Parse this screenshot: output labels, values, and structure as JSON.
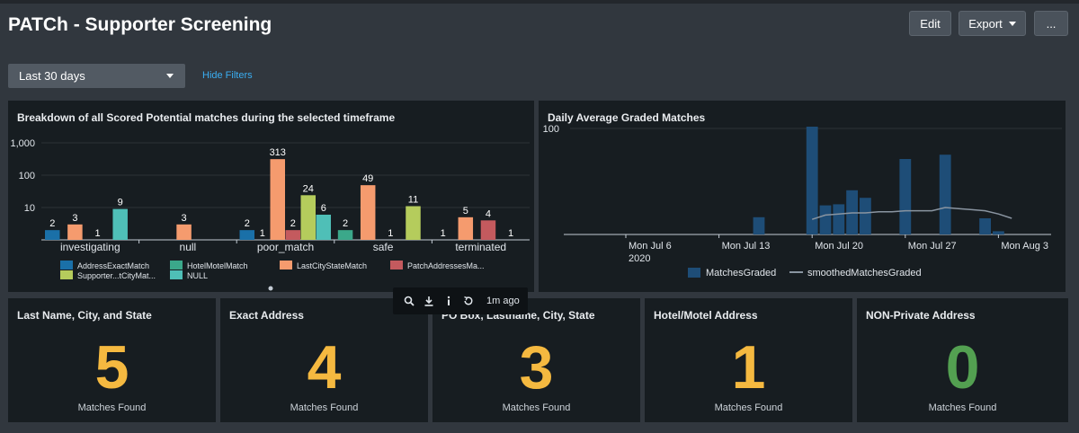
{
  "header": {
    "title": "PATCh - Supporter Screening"
  },
  "toolbar": {
    "edit_label": "Edit",
    "export_label": "Export",
    "more_label": "..."
  },
  "filters": {
    "timerange_value": "Last 30 days",
    "hide_filters_label": "Hide Filters"
  },
  "panels": {
    "breakdown_title": "Breakdown of all Scored Potential matches during the selected timeframe",
    "daily_title": "Daily Average Graded Matches"
  },
  "panel_toolbar": {
    "refresh_ago": "1m ago"
  },
  "chart_data": [
    {
      "type": "bar",
      "title": "Breakdown of all Scored Potential matches during the selected timeframe",
      "yscale": "log",
      "ylim": [
        1,
        1000
      ],
      "yticks": [
        "1,000",
        "100",
        "10"
      ],
      "categories": [
        "investigating",
        "null",
        "poor_match",
        "safe",
        "terminated"
      ],
      "series": [
        {
          "name": "AddressExactMatch",
          "color": "#1a70a8",
          "values": [
            2,
            null,
            2,
            null,
            1
          ]
        },
        {
          "name": "HotelMotelMatch",
          "color": "#3ba88a",
          "values": [
            null,
            null,
            1,
            2,
            null
          ]
        },
        {
          "name": "LastCityStateMatch",
          "color": "#f59b6e",
          "values": [
            3,
            3,
            313,
            49,
            5
          ]
        },
        {
          "name": "PatchAddressesMa...",
          "color": "#c45a5e",
          "values": [
            null,
            null,
            2,
            1,
            4
          ]
        },
        {
          "name": "Supporter...tCityMat...",
          "color": "#b5cc5c",
          "values": [
            1,
            null,
            24,
            11,
            1
          ]
        },
        {
          "name": "NULL",
          "color": "#4fbfb7",
          "values": [
            9,
            null,
            6,
            null,
            null
          ]
        }
      ],
      "legend_position": "bottom"
    },
    {
      "type": "bar",
      "title": "Daily Average Graded Matches",
      "ytick": "100",
      "xtick_labels": [
        "Mon Jul 6",
        "Mon Jul 13",
        "Mon Jul 20",
        "Mon Jul 27",
        "Mon Aug 3"
      ],
      "xtick_year": "2020",
      "series": [
        {
          "name": "MatchesGraded",
          "color": "#1e4d77"
        },
        {
          "name": "smoothedMatchesGraded",
          "color": "#8a95a1"
        }
      ],
      "x": [
        "Jul 16",
        "Jul 17",
        "Jul 18",
        "Jul 19",
        "Jul 20",
        "Jul 21",
        "Jul 22",
        "Jul 23",
        "Jul 24",
        "Jul 25",
        "Jul 26",
        "Jul 27",
        "Jul 28",
        "Jul 29",
        "Jul 30",
        "Jul 31",
        "Aug 1",
        "Aug 2",
        "Aug 3",
        "Aug 4"
      ],
      "values": [
        16,
        null,
        null,
        null,
        100,
        27,
        28,
        41,
        34,
        null,
        null,
        70,
        null,
        null,
        74,
        null,
        null,
        15,
        3,
        null
      ],
      "smoothed": [
        null,
        null,
        null,
        null,
        14,
        18,
        19,
        20,
        20,
        21,
        21,
        22,
        22,
        22,
        25,
        24,
        23,
        22,
        19,
        15
      ],
      "legend_position": "bottom"
    }
  ],
  "stats": [
    {
      "title": "Last Name, City, and State",
      "value": "5",
      "label": "Matches Found",
      "color": "#f5b940"
    },
    {
      "title": "Exact Address",
      "value": "4",
      "label": "Matches Found",
      "color": "#f5b940"
    },
    {
      "title": "PO Box, Lastname, City, State",
      "value": "3",
      "label": "Matches Found",
      "color": "#f5b940"
    },
    {
      "title": "Hotel/Motel Address",
      "value": "1",
      "label": "Matches Found",
      "color": "#f5b940"
    },
    {
      "title": "NON-Private Address",
      "value": "0",
      "label": "Matches Found",
      "color": "#53a051"
    }
  ]
}
